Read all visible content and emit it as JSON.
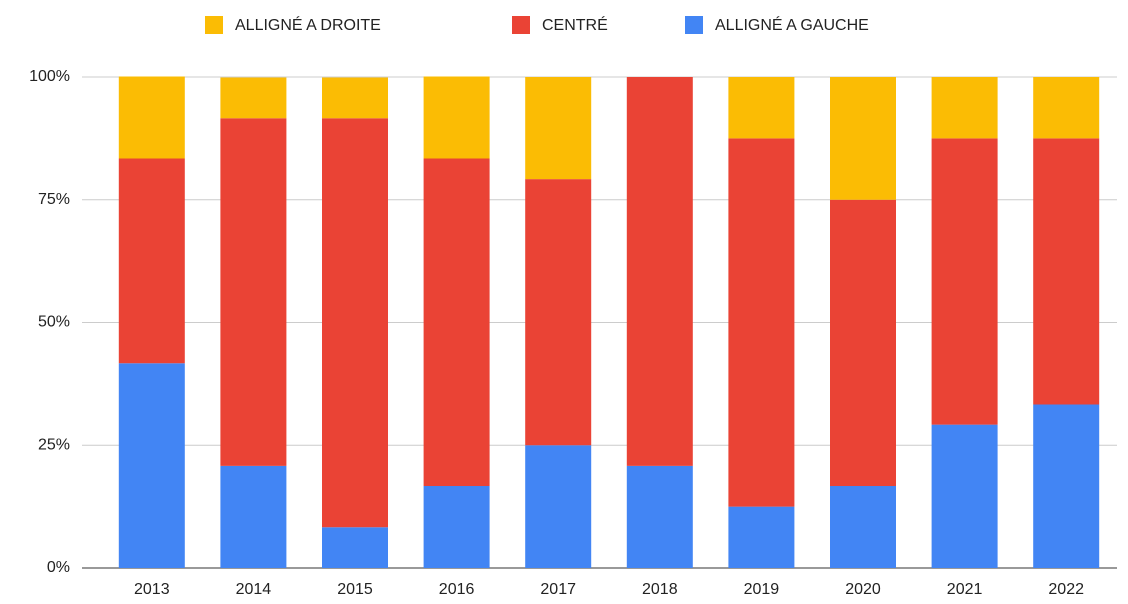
{
  "chart_data": {
    "type": "stacked_bar",
    "categories": [
      "2013",
      "2014",
      "2015",
      "2016",
      "2017",
      "2018",
      "2019",
      "2020",
      "2021",
      "2022"
    ],
    "series": [
      {
        "name": "ALLIGNÉ A DROITE",
        "color": "#fbbc04",
        "values": [
          16.7,
          8.3,
          8.3,
          16.7,
          20.8,
          0,
          12.5,
          25,
          12.5,
          12.5
        ]
      },
      {
        "name": "CENTRÉ",
        "color": "#ea4335",
        "values": [
          41.7,
          70.8,
          83.3,
          66.7,
          54.2,
          79.2,
          75,
          58.3,
          58.3,
          54.2
        ]
      },
      {
        "name": "ALLIGNÉ A GAUCHE",
        "color": "#4285f4",
        "values": [
          41.7,
          20.8,
          8.3,
          16.7,
          25,
          20.8,
          12.5,
          16.7,
          29.2,
          33.3
        ]
      }
    ],
    "ylim": [
      0,
      100
    ],
    "yticks": [
      {
        "value": 0,
        "label": "0%"
      },
      {
        "value": 25,
        "label": "25%"
      },
      {
        "value": 50,
        "label": "50%"
      },
      {
        "value": 75,
        "label": "75%"
      },
      {
        "value": 100,
        "label": "100%"
      }
    ],
    "grid": true,
    "legend": "top"
  }
}
